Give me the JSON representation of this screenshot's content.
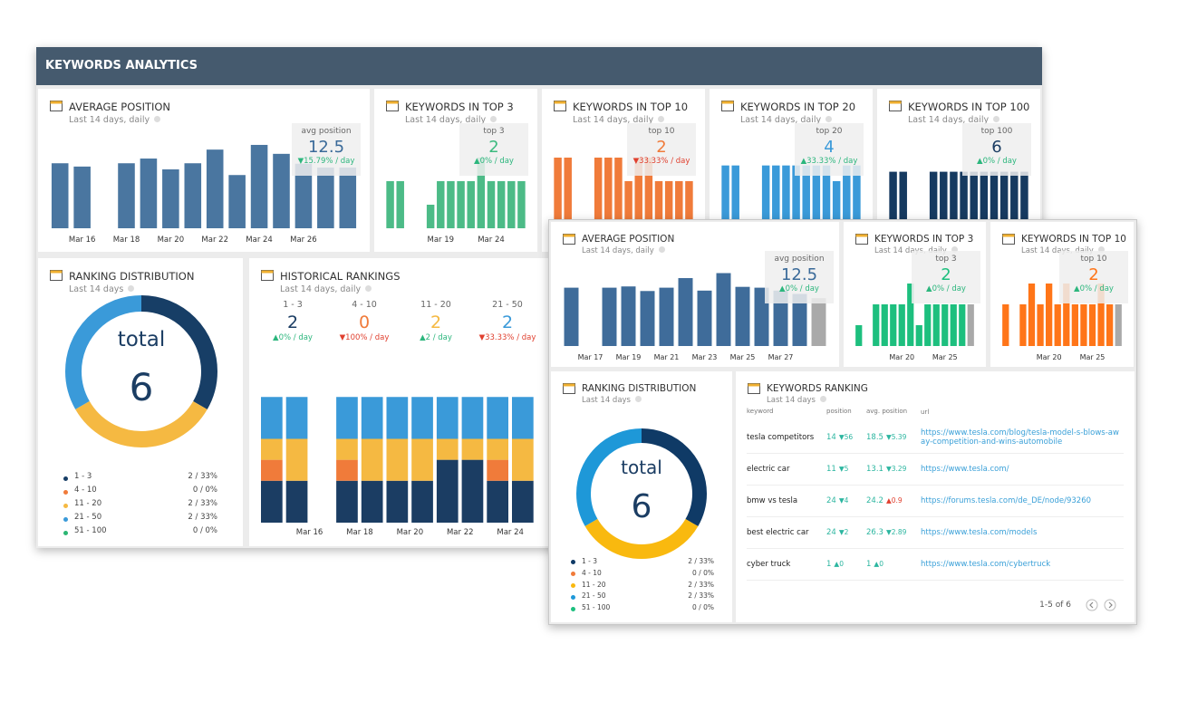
{
  "header": {
    "title": "KEYWORDS ANALYTICS"
  },
  "widgets": [
    {
      "type": "bar",
      "title": "AVERAGE POSITION",
      "subtitle": "Last 14 days, daily",
      "stat": {
        "label": "avg position",
        "value": 12.5,
        "change": "▼15.79% / day",
        "color": "#3a6a99",
        "change_color": "#2cb67d"
      },
      "color": "#4a76a0",
      "ylim": [
        0,
        20
      ],
      "categories": [
        null,
        "Mar 16",
        null,
        "Mar 18",
        null,
        "Mar 20",
        null,
        "Mar 22",
        null,
        "Mar 24",
        null,
        "Mar 26",
        null,
        null
      ],
      "values": [
        13.8,
        13.1,
        null,
        13.8,
        14.8,
        12.5,
        13.8,
        16.7,
        11.3,
        17.7,
        15.8,
        13.7,
        12.9,
        12.9
      ]
    },
    {
      "type": "bar",
      "title": "KEYWORDS IN TOP 3",
      "subtitle": "Last 14 days, daily",
      "stat": {
        "label": "top 3",
        "value": 2,
        "change": "▲0% / day",
        "color": "#3dba7f",
        "change_color": "#2cb67d"
      },
      "color": "#4cbb87",
      "ylim": [
        0,
        4
      ],
      "categories": [
        null,
        null,
        null,
        null,
        null,
        "Mar 19",
        null,
        null,
        null,
        null,
        "Mar 24",
        null,
        null,
        null
      ],
      "values": [
        2,
        2,
        null,
        null,
        1,
        2,
        2,
        2,
        2,
        3,
        2,
        2,
        2,
        2
      ]
    },
    {
      "type": "bar",
      "title": "KEYWORDS IN TOP 10",
      "subtitle": "Last 14 days, daily",
      "stat": {
        "label": "top 10",
        "value": 2,
        "change": "▼33.33% / day",
        "color": "#f07b3a",
        "change_color": "#e0402f"
      },
      "color": "#f07b3a",
      "ylim": [
        0,
        4
      ],
      "values": [
        3,
        3,
        null,
        null,
        3,
        3,
        3,
        2,
        3,
        3,
        2,
        2,
        2,
        2
      ]
    },
    {
      "type": "bar",
      "title": "KEYWORDS IN TOP 20",
      "subtitle": "Last 14 days, daily",
      "stat": {
        "label": "top 20",
        "value": 4,
        "change": "▲33.33% / day",
        "color": "#3a9ad9",
        "change_color": "#2cb67d"
      },
      "color": "#3a9ad9",
      "ylim": [
        0,
        6
      ],
      "values": [
        4,
        4,
        null,
        null,
        4,
        4,
        4,
        4,
        4,
        4,
        4,
        3,
        4,
        4
      ]
    },
    {
      "type": "bar",
      "title": "KEYWORDS IN TOP 100",
      "subtitle": "Last 14 days, daily",
      "stat": {
        "label": "top 100",
        "value": 6,
        "change": "▲0% / day",
        "color": "#1b3d63",
        "change_color": "#2cb67d"
      },
      "color": "#163a60",
      "ylim": [
        0,
        10
      ],
      "values": [
        6,
        6,
        null,
        null,
        6,
        6,
        6,
        6,
        6,
        6,
        6,
        6,
        6,
        6
      ]
    },
    {
      "type": "donut",
      "title": "RANKING DISTRIBUTION",
      "subtitle": "Last 14 days",
      "total_label": "total",
      "total": 6,
      "series": [
        {
          "name": "1 - 3",
          "color": "#173e66",
          "value": 2,
          "value_label": "2 / 33%"
        },
        {
          "name": "4 - 10",
          "color": "#f07b3a",
          "value": 0,
          "value_label": "0 / 0%"
        },
        {
          "name": "11 - 20",
          "color": "#f5b942",
          "value": 2,
          "value_label": "2 / 33%"
        },
        {
          "name": "21 - 50",
          "color": "#3a9ad9",
          "value": 2,
          "value_label": "2 / 33%"
        },
        {
          "name": "51 - 100",
          "color": "#2bb673",
          "value": 0,
          "value_label": "0 / 0%"
        }
      ]
    },
    {
      "type": "stacked",
      "title": "HISTORICAL RANKINGS",
      "subtitle": "Last 14 days, daily",
      "ylim": [
        0,
        8
      ],
      "stats": [
        {
          "label": "1 - 3",
          "value": 2,
          "change": "▲0% / day",
          "change_color": "#2cb67d"
        },
        {
          "label": "4 - 10",
          "value": 0,
          "change": "▼100% / day",
          "change_color": "#e0402f"
        },
        {
          "label": "11 - 20",
          "value": 2,
          "change": "▲2 / day",
          "change_color": "#2cb67d"
        },
        {
          "label": "21 - 50",
          "value": 2,
          "change": "▼33.33% / day",
          "change_color": "#e0402f"
        }
      ],
      "categories": [
        null,
        "Mar 16",
        null,
        "Mar 18",
        null,
        "Mar 20",
        null,
        "Mar 22",
        null,
        "Mar 24",
        null
      ],
      "series": [
        {
          "color": "#1b3d63",
          "values": [
            2,
            2,
            null,
            2,
            2,
            2,
            2,
            3,
            3,
            2,
            2
          ]
        },
        {
          "color": "#f07b3a",
          "values": [
            1,
            0,
            null,
            1,
            0,
            0,
            0,
            0,
            0,
            1,
            0
          ]
        },
        {
          "color": "#f5b942",
          "values": [
            1,
            2,
            null,
            1,
            2,
            2,
            2,
            1,
            1,
            1,
            2
          ]
        },
        {
          "color": "#3a9ad9",
          "values": [
            2,
            2,
            null,
            2,
            2,
            2,
            2,
            2,
            2,
            2,
            2
          ]
        }
      ]
    },
    {
      "type": "bar",
      "title": "AVERAGE POSITION",
      "subtitle": "Last 14 days, daily",
      "stat": {
        "label": "avg position",
        "value": 12.5,
        "change": "▲0% / day",
        "color": "#3a6a99",
        "change_color": "#2cb67d"
      },
      "color": "#3f6c9a",
      "last_color": "#a9a9a9",
      "ylim": [
        0,
        20
      ],
      "categories": [
        null,
        "Mar 17",
        null,
        "Mar 19",
        null,
        "Mar 21",
        null,
        "Mar 23",
        null,
        "Mar 25",
        null,
        "Mar 27",
        null,
        null
      ],
      "values": [
        14,
        null,
        14,
        14.3,
        13.2,
        14,
        16.3,
        13.3,
        17.5,
        14.2,
        14,
        13.3,
        12.5,
        11.5
      ]
    },
    {
      "type": "bar",
      "title": "KEYWORDS IN TOP 3",
      "subtitle": "Last 14 days, daily",
      "stat": {
        "label": "top 3",
        "value": 2,
        "change": "▲0% / day",
        "color": "#1dbf7e",
        "change_color": "#2cb67d"
      },
      "color": "#1dbf7e",
      "last_color": "#a9a9a9",
      "ylim": [
        0,
        4
      ],
      "categories": [
        null,
        null,
        null,
        null,
        null,
        "Mar 20",
        null,
        null,
        null,
        null,
        "Mar 25",
        null,
        null,
        null
      ],
      "values": [
        1,
        null,
        2,
        2,
        2,
        2,
        3,
        1,
        2,
        2,
        2,
        2,
        2,
        2
      ]
    },
    {
      "type": "bar",
      "title": "KEYWORDS IN TOP 10",
      "subtitle": "Last 14 days, daily",
      "stat": {
        "label": "top 10",
        "value": 2,
        "change": "▲0% / day",
        "color": "#ff7518",
        "change_color": "#2cb67d"
      },
      "color": "#ff7518",
      "last_color": "#a9a9a9",
      "ylim": [
        0,
        4
      ],
      "categories": [
        null,
        null,
        null,
        null,
        null,
        "Mar 20",
        null,
        null,
        null,
        null,
        "Mar 25",
        null,
        null,
        null
      ],
      "values": [
        2,
        null,
        2,
        3,
        2,
        3,
        2,
        3,
        2,
        2,
        2,
        3,
        2,
        2
      ]
    },
    {
      "type": "donut",
      "title": "RANKING DISTRIBUTION",
      "subtitle": "Last 14 days",
      "total_label": "total",
      "total": 6,
      "series": [
        {
          "name": "1 - 3",
          "color": "#0f3a66",
          "value": 2,
          "value_label": "2 / 33%"
        },
        {
          "name": "4 - 10",
          "color": "#f07b3a",
          "value": 0,
          "value_label": "0 / 0%"
        },
        {
          "name": "11 - 20",
          "color": "#f9b90f",
          "value": 2,
          "value_label": "2 / 33%"
        },
        {
          "name": "21 - 50",
          "color": "#1e98d8",
          "value": 2,
          "value_label": "2 / 33%"
        },
        {
          "name": "51 - 100",
          "color": "#1dbf7e",
          "value": 0,
          "value_label": "0 / 0%"
        }
      ]
    },
    {
      "type": "table",
      "title": "KEYWORDS RANKING",
      "subtitle": "Last 14 days",
      "columns": [
        "keyword",
        "position",
        "avg. position",
        "url"
      ],
      "rows": [
        {
          "keyword": "tesla competitors",
          "position": 14,
          "position_change": "▼56",
          "position_change_color": "#2cb6a0",
          "avg_position": 18.5,
          "avg_change": "▼5.39",
          "avg_change_color": "#2cb6a0",
          "url": "https://www.tesla.com/blog/tesla-model-s-blows-away-competition-and-wins-automobile"
        },
        {
          "keyword": "electric car",
          "position": 11,
          "position_change": "▼5",
          "position_change_color": "#2cb6a0",
          "avg_position": 13.1,
          "avg_change": "▼3.29",
          "avg_change_color": "#2cb6a0",
          "url": "https://www.tesla.com/"
        },
        {
          "keyword": "bmw vs tesla",
          "position": 24,
          "position_change": "▼4",
          "position_change_color": "#2cb6a0",
          "avg_position": 24.2,
          "avg_change": "▲0.9",
          "avg_change_color": "#e0402f",
          "url": "https://forums.tesla.com/de_DE/node/93260"
        },
        {
          "keyword": "best electric car",
          "position": 24,
          "position_change": "▼2",
          "position_change_color": "#2cb6a0",
          "avg_position": 26.3,
          "avg_change": "▼2.89",
          "avg_change_color": "#2cb6a0",
          "url": "https://www.tesla.com/models"
        },
        {
          "keyword": "cyber truck",
          "position": 1,
          "position_change": "▲0",
          "position_change_color": "#2cb6a0",
          "avg_position": 1,
          "avg_change": "▲0",
          "avg_change_color": "#2cb6a0",
          "url": "https://www.tesla.com/cybertruck"
        }
      ],
      "pagination": "1-5 of 6"
    }
  ]
}
